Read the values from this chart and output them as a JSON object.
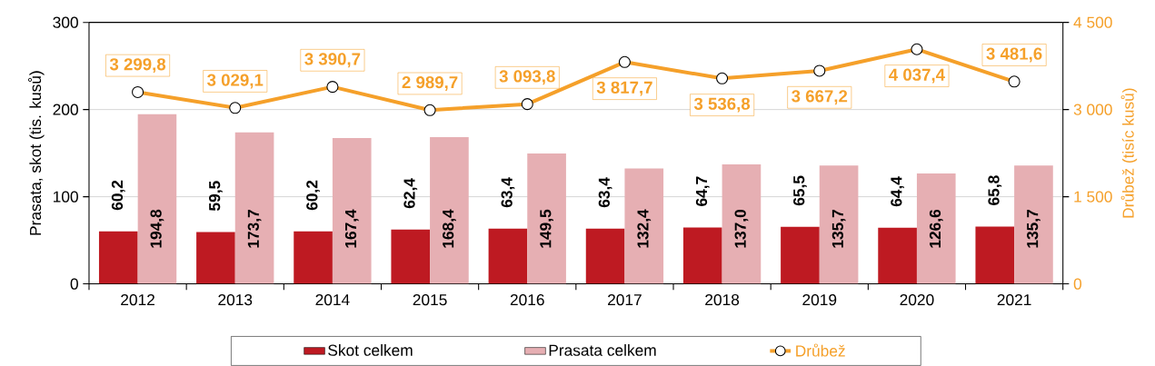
{
  "chart_data": {
    "type": "bar",
    "ylabel": "Prasata, skot  (tis. kusů)",
    "y2label": "Drůbež (tisíc kusů)",
    "categories": [
      "2012",
      "2013",
      "2014",
      "2015",
      "2016",
      "2017",
      "2018",
      "2019",
      "2020",
      "2021"
    ],
    "ylim": [
      0,
      300
    ],
    "yticks": [
      0,
      100,
      200,
      300
    ],
    "y2lim": [
      0,
      4500
    ],
    "y2ticks": [
      0,
      {
        "value": 1500,
        "label": "1 500"
      },
      {
        "value": 3000,
        "label": "3 000"
      },
      {
        "value": 4500,
        "label": "4 500"
      }
    ],
    "grid": "y",
    "legend": "bottom",
    "series": [
      {
        "name": "Skot celkem",
        "color": "#be1a22",
        "values": [
          60.2,
          59.5,
          60.2,
          62.4,
          63.4,
          63.4,
          64.7,
          65.5,
          64.4,
          65.8
        ],
        "value_labels": [
          "60,2",
          "59,5",
          "60,2",
          "62,4",
          "63,4",
          "63,4",
          "64,7",
          "65,5",
          "64,4",
          "65,8"
        ]
      },
      {
        "name": "Prasata celkem",
        "color": "#e6afb3",
        "values": [
          194.8,
          173.7,
          167.4,
          168.4,
          149.5,
          132.4,
          137.0,
          135.7,
          126.6,
          135.7
        ],
        "value_labels": [
          "194,8",
          "173,7",
          "167,4",
          "168,4",
          "149,5",
          "132,4",
          "137,0",
          "135,7",
          "126,6",
          "135,7"
        ]
      },
      {
        "name": "Drůbež",
        "type": "line",
        "axis": "y2",
        "marker": "circle",
        "color": "#f5a02a",
        "values": [
          3299.8,
          3029.1,
          3390.7,
          2989.7,
          3093.8,
          3817.7,
          3536.8,
          3667.2,
          4037.4,
          3481.6
        ],
        "value_labels": [
          "3 299,8",
          "3 029,1",
          "3 390,7",
          "2 989,7",
          "3 093,8",
          "3 817,7",
          "3 536,8",
          "3 667,2",
          "4 037,4",
          "3 481,6"
        ]
      }
    ]
  }
}
